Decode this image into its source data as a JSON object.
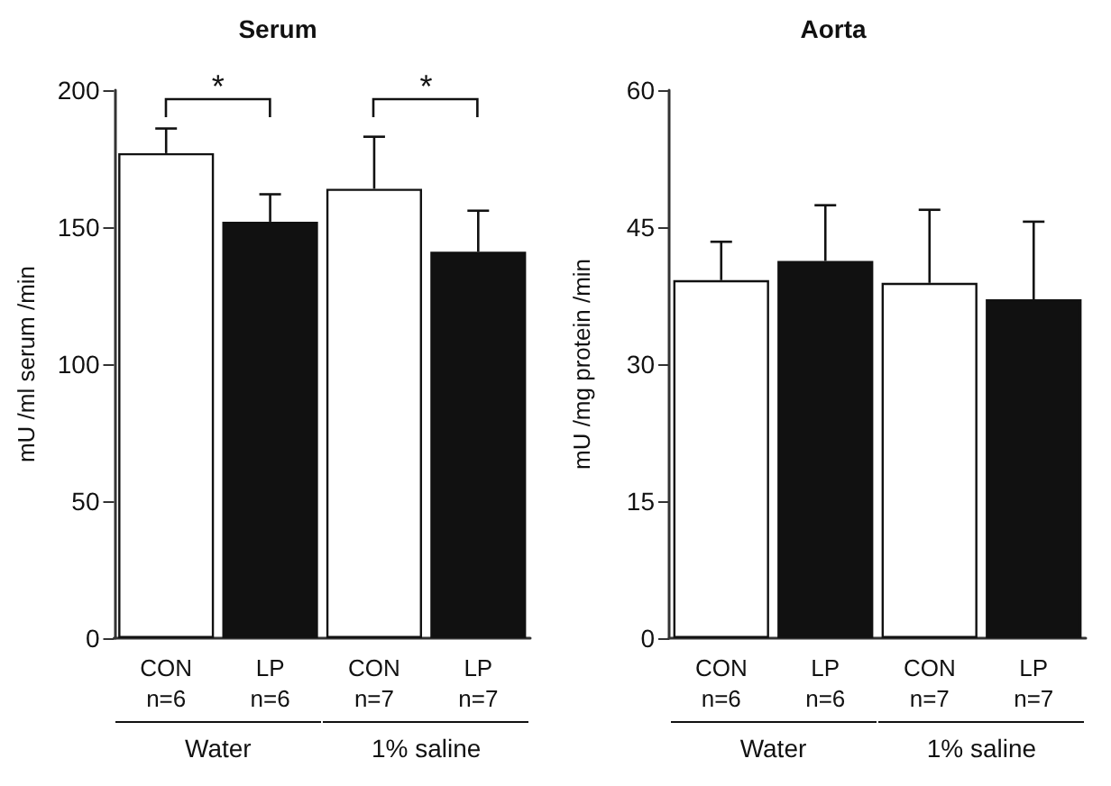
{
  "chart_data": [
    {
      "type": "bar",
      "title": "Serum",
      "ylabel": "mU /ml serum /min",
      "categories": [
        "CON\nn=6",
        "LP\nn=6",
        "CON\nn=7",
        "LP\nn=7"
      ],
      "values": [
        177,
        152,
        164,
        141
      ],
      "errors": [
        [
          177,
          186
        ],
        [
          152,
          162
        ],
        [
          164,
          183
        ],
        [
          141,
          156
        ]
      ],
      "colors": [
        "#ffffff",
        "#111111",
        "#ffffff",
        "#111111"
      ],
      "ylim": [
        0,
        200
      ],
      "yticks": [
        0,
        50,
        100,
        150,
        200
      ],
      "annotations": [
        "*",
        "*",
        "Water",
        "1% saline"
      ]
    },
    {
      "type": "bar",
      "title": "Aorta",
      "ylabel": "mU /mg protein /min",
      "categories": [
        "CON\nn=6",
        "LP\nn=6",
        "CON\nn=7",
        "LP\nn=7"
      ],
      "values": [
        39.2,
        41.3,
        38.9,
        37.1
      ],
      "errors": [
        [
          39.2,
          43.4
        ],
        [
          41.3,
          47.4
        ],
        [
          38.9,
          46.9
        ],
        [
          37.1,
          45.6
        ]
      ],
      "colors": [
        "#ffffff",
        "#111111",
        "#ffffff",
        "#111111"
      ],
      "ylim": [
        0,
        60
      ],
      "yticks": [
        0,
        15,
        30,
        45,
        60
      ],
      "annotations": [
        "Water",
        "1% saline"
      ]
    }
  ]
}
